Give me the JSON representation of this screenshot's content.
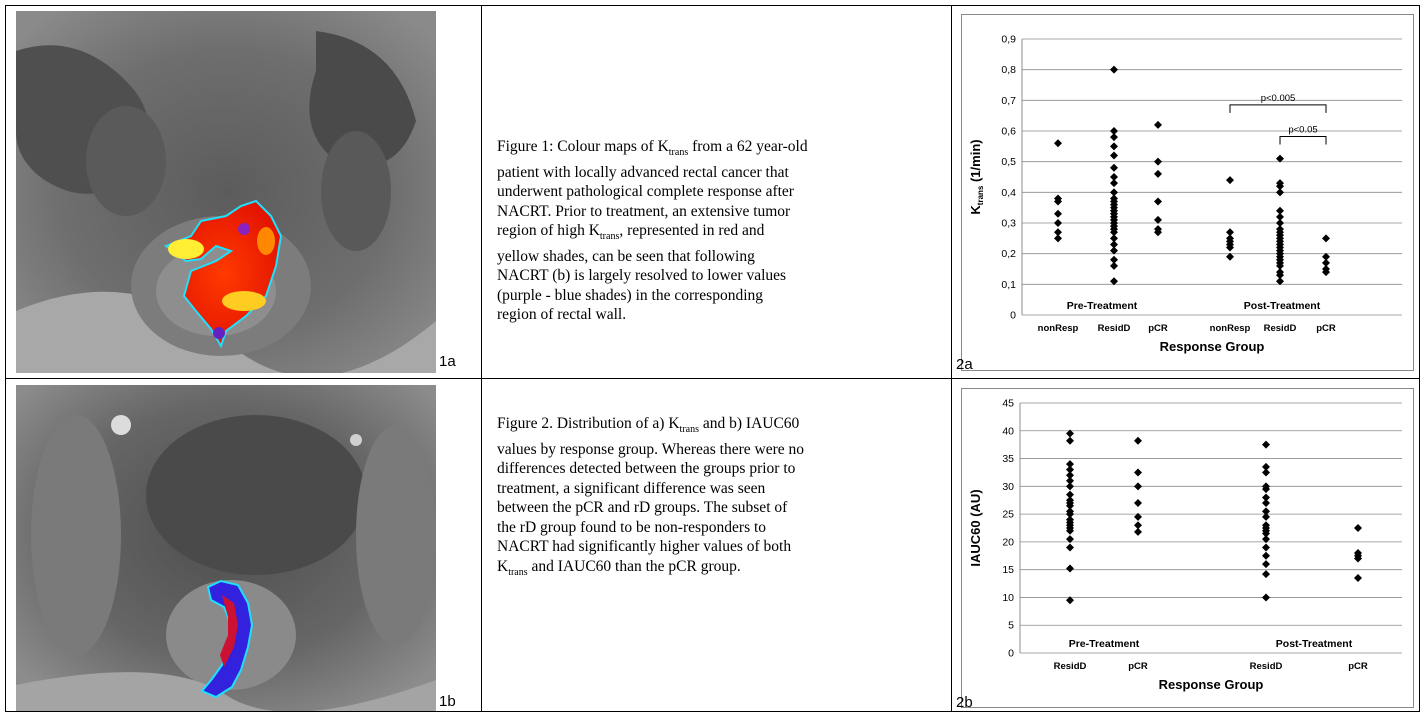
{
  "panels": {
    "p1a": "1a",
    "p1b": "1b",
    "p2a": "2a",
    "p2b": "2b"
  },
  "captions": {
    "fig1": {
      "line1_pre": "Figure 1: Colour maps of K",
      "line1_sub": "trans",
      "line1_post": " from a 62 year-old",
      "line2": "patient with locally advanced rectal cancer that",
      "line3": "underwent pathological complete response after",
      "line4": "NACRT.  Prior to treatment, an extensive tumor",
      "line5_pre": "region of high K",
      "line5_sub": "trans",
      "line5_post": ", represented in  red and",
      "line6": "yellow shades, can be seen that following",
      "line7": "NACRT (b) is largely  resolved to lower values",
      "line8": "(purple - blue shades) in the corresponding",
      "line9": "region of rectal wall."
    },
    "fig2": {
      "line1_pre": "Figure 2. Distribution of a) K",
      "line1_sub": "trans",
      "line1_post": " and b) IAUC60",
      "line2": "values by response group. Whereas there were no",
      "line3": "differences detected between the groups prior to",
      "line4": "treatment, a significant difference was seen",
      "line5": "between the pCR and rD groups. The subset of",
      "line6": "the rD group found to be non-responders to",
      "line7": "NACRT had significantly higher values of both",
      "line8_pre": "K",
      "line8_sub": "trans",
      "line8_post": " and IAUC60 than the pCR group."
    }
  },
  "chart_data": [
    {
      "type": "scatter",
      "id": "2a",
      "ylabel_main": "K",
      "ylabel_sub": "trans",
      "ylabel_post": " (1/min)",
      "xlabel": "Response Group",
      "ylim": [
        0,
        0.9
      ],
      "yticks": [
        "0",
        "0,1",
        "0,2",
        "0,3",
        "0,4",
        "0,5",
        "0,6",
        "0,7",
        "0,8",
        "0,9"
      ],
      "grid": true,
      "categories": [
        "nonResp",
        "ResidD",
        "pCR",
        "nonResp",
        "ResidD",
        "pCR"
      ],
      "group_labels": [
        "Pre-Treatment",
        "Post-Treatment"
      ],
      "annotations": [
        "p<0.005",
        "p<0.05"
      ],
      "series": [
        {
          "values": [
            [
              0.56,
              0.38,
              0.37,
              0.33,
              0.3,
              0.27,
              0.25
            ]
          ]
        },
        {
          "values": [
            [
              0.8,
              0.6,
              0.58,
              0.55,
              0.52,
              0.48,
              0.45,
              0.43,
              0.4,
              0.38,
              0.37,
              0.36,
              0.35,
              0.34,
              0.33,
              0.32,
              0.31,
              0.3,
              0.29,
              0.28,
              0.27,
              0.25,
              0.23,
              0.21,
              0.18,
              0.16,
              0.11
            ]
          ]
        },
        {
          "values": [
            [
              0.62,
              0.5,
              0.46,
              0.37,
              0.31,
              0.28,
              0.27
            ]
          ]
        },
        {
          "values": [
            [
              0.44,
              0.27,
              0.25,
              0.24,
              0.23,
              0.22,
              0.19
            ]
          ]
        },
        {
          "values": [
            [
              0.51,
              0.43,
              0.42,
              0.4,
              0.34,
              0.32,
              0.3,
              0.28,
              0.27,
              0.26,
              0.25,
              0.24,
              0.23,
              0.22,
              0.21,
              0.2,
              0.19,
              0.18,
              0.17,
              0.16,
              0.14,
              0.13,
              0.11
            ]
          ]
        },
        {
          "values": [
            [
              0.25,
              0.19,
              0.17,
              0.15,
              0.14
            ]
          ]
        }
      ]
    },
    {
      "type": "scatter",
      "id": "2b",
      "ylabel": "IAUC60 (AU)",
      "xlabel": "Response Group",
      "ylim": [
        0,
        45
      ],
      "yticks": [
        "0",
        "5",
        "10",
        "15",
        "20",
        "25",
        "30",
        "35",
        "40",
        "45"
      ],
      "grid": true,
      "categories": [
        "ResidD",
        "pCR",
        "ResidD",
        "pCR"
      ],
      "group_labels": [
        "Pre-Treatment",
        "Post-Treatment"
      ],
      "series": [
        {
          "values": [
            [
              39.5,
              38.2,
              34.0,
              33.0,
              32.0,
              31.0,
              30.0,
              28.5,
              27.5,
              27.0,
              26.5,
              25.5,
              25.0,
              24.0,
              23.5,
              23.0,
              22.5,
              22.0,
              20.5,
              19.0,
              15.2,
              9.5
            ]
          ]
        },
        {
          "values": [
            [
              38.2,
              32.5,
              30.0,
              27.0,
              24.5,
              23.0,
              21.8
            ]
          ]
        },
        {
          "values": [
            [
              37.5,
              33.5,
              32.5,
              30.0,
              29.5,
              28.0,
              27.0,
              25.5,
              24.5,
              23.0,
              22.5,
              22.0,
              21.5,
              20.5,
              19.0,
              17.5,
              16.0,
              14.2,
              10.0
            ]
          ]
        },
        {
          "values": [
            [
              22.5,
              18.0,
              17.5,
              17.0,
              13.5
            ]
          ]
        }
      ]
    }
  ]
}
